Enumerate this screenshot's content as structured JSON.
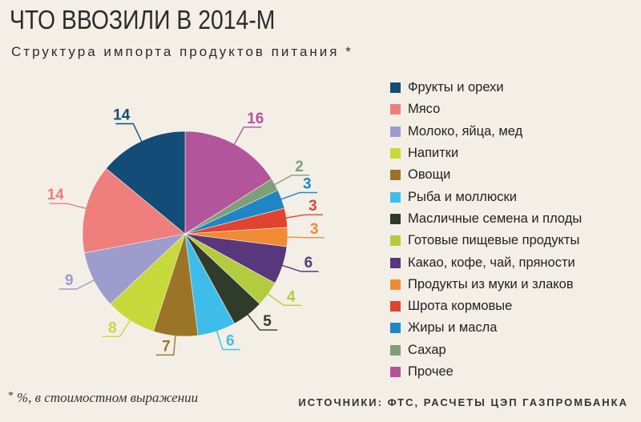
{
  "title": "ЧТО ВВОЗИЛИ В 2014-М",
  "subtitle": "Структура импорта продуктов питания",
  "subtitle_mark": "*",
  "footnote_mark": "*",
  "footnote": "%, в стоимостном выражении",
  "source": "ИСТОЧНИКИ: ФТС, РАСЧЕТЫ ЦЭП ГАЗПРОМБАНКА",
  "chart_data": {
    "type": "pie",
    "unit": "%",
    "slices": [
      {
        "label": "Прочее",
        "value": 16,
        "color": "#b3559b"
      },
      {
        "label": "Сахар",
        "value": 2,
        "color": "#7f9f78"
      },
      {
        "label": "Жиры и масла",
        "value": 3,
        "color": "#1f86c6"
      },
      {
        "label": "Шрота кормовые",
        "value": 3,
        "color": "#e2432f"
      },
      {
        "label": "Продукты из муки и злаков",
        "value": 3,
        "color": "#f08b34"
      },
      {
        "label": "Какао, кофе, чай, пряности",
        "value": 6,
        "color": "#58377d"
      },
      {
        "label": "Готовые пищевые продукты",
        "value": 4,
        "color": "#b3cc3f"
      },
      {
        "label": "Масличные семена и плоды",
        "value": 5,
        "color": "#2f3b2b"
      },
      {
        "label": "Рыба и моллюски",
        "value": 6,
        "color": "#3fbdea"
      },
      {
        "label": "Овощи",
        "value": 7,
        "color": "#9b7428"
      },
      {
        "label": "Напитки",
        "value": 8,
        "color": "#c5d93a"
      },
      {
        "label": "Молоко, яйца, мед",
        "value": 9,
        "color": "#9c9ccd"
      },
      {
        "label": "Мясо",
        "value": 14,
        "color": "#ee7f7d"
      },
      {
        "label": "Фрукты и орехи",
        "value": 14,
        "color": "#134c77"
      }
    ],
    "legend": [
      {
        "label": "Фрукты и орехи",
        "color": "#134c77"
      },
      {
        "label": "Мясо",
        "color": "#ee7f7d"
      },
      {
        "label": "Молоко, яйца, мед",
        "color": "#9c9ccd"
      },
      {
        "label": "Напитки",
        "color": "#c5d93a"
      },
      {
        "label": "Овощи",
        "color": "#9b7428"
      },
      {
        "label": "Рыба и моллюски",
        "color": "#3fbdea"
      },
      {
        "label": "Масличные семена и плоды",
        "color": "#2f3b2b"
      },
      {
        "label": "Готовые пищевые продукты",
        "color": "#b3cc3f"
      },
      {
        "label": "Какао, кофе, чай, пряности",
        "color": "#58377d"
      },
      {
        "label": "Продукты из муки и злаков",
        "color": "#f08b34"
      },
      {
        "label": "Шрота кормовые",
        "color": "#e2432f"
      },
      {
        "label": "Жиры и масла",
        "color": "#1f86c6"
      },
      {
        "label": "Сахар",
        "color": "#7f9f78"
      },
      {
        "label": "Прочее",
        "color": "#b3559b"
      }
    ],
    "legend_placement": "right"
  }
}
